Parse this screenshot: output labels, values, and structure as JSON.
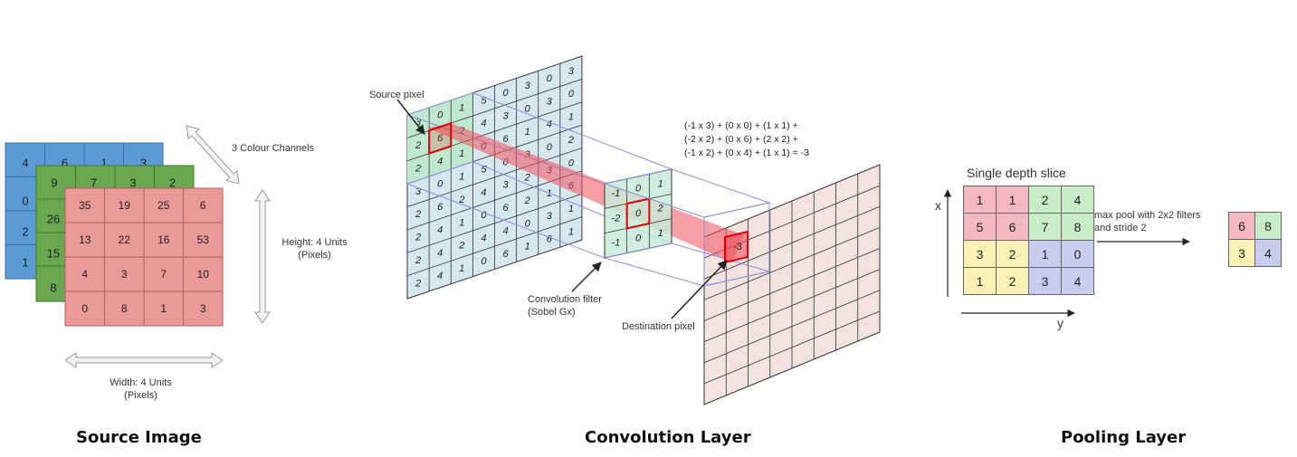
{
  "source_image": {
    "title": "Source Image",
    "channels_label": "3 Colour Channels",
    "height_label": [
      "Height: 4 Units",
      "(Pixels)"
    ],
    "width_label": [
      "Width: 4 Units",
      "(Pixels)"
    ],
    "blue_channel": {
      "color": "#5b9bd5",
      "row0": [
        "4",
        "6",
        "1",
        "3"
      ],
      "col0": [
        "0",
        "2",
        "1"
      ]
    },
    "green_channel": {
      "color": "#6aa84f",
      "row0": [
        "9",
        "7",
        "3",
        "2"
      ],
      "col0": [
        "26",
        "15",
        "8"
      ]
    },
    "red_channel": {
      "color": "#ea9999",
      "rows": [
        [
          "35",
          "19",
          "25",
          "6"
        ],
        [
          "13",
          "22",
          "16",
          "53"
        ],
        [
          "4",
          "3",
          "7",
          "10"
        ],
        [
          "0",
          "8",
          "1",
          "3"
        ]
      ]
    }
  },
  "convolution": {
    "title": "Convolution Layer",
    "source_pixel_label": "Source pixel",
    "filter_label": [
      "Convolution filter",
      "(Sobel Gx)"
    ],
    "destination_pixel_label": "Destination pixel",
    "equation": [
      "(-1 x 3) + (0 x 0) + (1 x 1) +",
      "(-2 x 2) + (0 x 6) + (2 x 2) +",
      "(-1 x 2) + (0 x 4) + (1 x 1)  = -3"
    ],
    "source_grid": [
      [
        "3",
        "0",
        "1",
        "5",
        "0",
        "3",
        "0",
        "3"
      ],
      [
        "2",
        "6",
        "2",
        "4",
        "3",
        "0",
        "3",
        "0"
      ],
      [
        "2",
        "4",
        "1",
        "0",
        "6",
        "1",
        "4",
        "1"
      ],
      [
        "3",
        "0",
        "1",
        "5",
        "0",
        "3",
        "0",
        "2"
      ],
      [
        "2",
        "6",
        "2",
        "4",
        "3",
        "2",
        "3",
        "0"
      ],
      [
        "2",
        "4",
        "1",
        "0",
        "6",
        "2",
        "1",
        "6"
      ],
      [
        "2",
        "4",
        "2",
        "4",
        "4",
        "0",
        "3",
        "1"
      ],
      [
        "2",
        "4",
        "1",
        "0",
        "6",
        "1",
        "6",
        "1"
      ]
    ],
    "filter": [
      [
        "-1",
        "0",
        "1"
      ],
      [
        "-2",
        "0",
        "2"
      ],
      [
        "-1",
        "0",
        "1"
      ]
    ],
    "destination_value": "-3"
  },
  "pooling": {
    "title": "Pooling Layer",
    "slice_label": "Single depth slice",
    "x_label": "x",
    "y_label": "y",
    "arrow_label": [
      "max pool with 2x2 filters",
      "and stride 2"
    ],
    "input": [
      [
        "1",
        "1",
        "2",
        "4"
      ],
      [
        "5",
        "6",
        "7",
        "8"
      ],
      [
        "3",
        "2",
        "1",
        "0"
      ],
      [
        "1",
        "2",
        "3",
        "4"
      ]
    ],
    "input_colors": [
      [
        "red",
        "red",
        "green",
        "green"
      ],
      [
        "red",
        "red",
        "green",
        "green"
      ],
      [
        "yellow",
        "yellow",
        "blue",
        "blue"
      ],
      [
        "yellow",
        "yellow",
        "blue",
        "blue"
      ]
    ],
    "output": [
      [
        "6",
        "8"
      ],
      [
        "3",
        "4"
      ]
    ],
    "output_colors": [
      [
        "red",
        "green"
      ],
      [
        "yellow",
        "blue"
      ]
    ]
  }
}
